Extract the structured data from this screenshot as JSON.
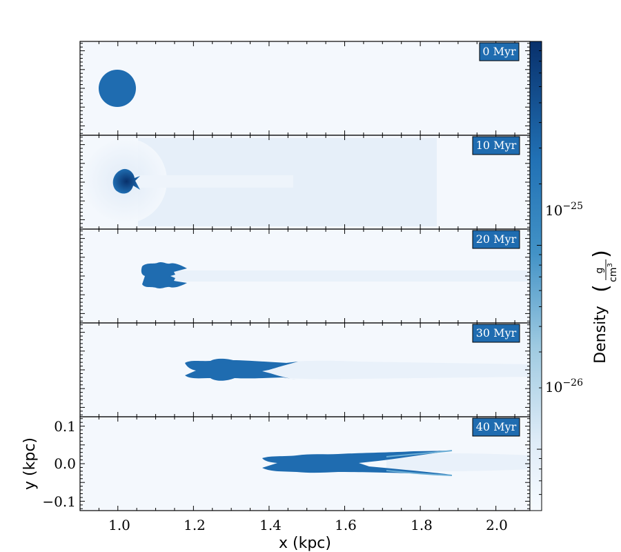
{
  "chart_data": {
    "type": "heatmap",
    "description": "",
    "xlabel": "x  (kpc)",
    "ylabel": "y  (kpc)",
    "xlim": [
      0.9,
      2.09
    ],
    "ylim": [
      -0.125,
      0.125
    ],
    "x_ticks": [
      1.0,
      1.2,
      1.4,
      1.6,
      1.8,
      2.0
    ],
    "x_tick_labels": [
      "1.0",
      "1.2",
      "1.4",
      "1.6",
      "1.8",
      "2.0"
    ],
    "y_ticks": [
      0.1,
      0.0,
      -0.1
    ],
    "y_tick_labels": [
      "0.1",
      "0.0",
      "−0.1"
    ],
    "colorbar": {
      "label": "Density",
      "unit_numerator": "g",
      "unit_denominator": "cm",
      "unit_denominator_exponent": "3",
      "scale": "log",
      "range": [
        5e-27,
        1e-24
      ],
      "ticks": [
        1e-25,
        1e-26
      ],
      "tick_labels": [
        {
          "base": "10",
          "exp": "−25"
        },
        {
          "base": "10",
          "exp": "−26"
        }
      ]
    },
    "panels": [
      {
        "time_label": "0 Myr",
        "cloud_x_kpc": 1.0,
        "cloud_shape": "sphere",
        "tail_end_x_kpc": null
      },
      {
        "time_label": "10 Myr",
        "cloud_x_kpc": 1.01,
        "cloud_shape": "compressed",
        "tail_end_x_kpc": 1.84
      },
      {
        "time_label": "20 Myr",
        "cloud_x_kpc": 1.12,
        "cloud_shape": "elongated",
        "tail_end_x_kpc": 2.09
      },
      {
        "time_label": "30 Myr",
        "cloud_x_kpc": 1.3,
        "cloud_shape": "stretched",
        "tail_end_x_kpc": 2.09
      },
      {
        "time_label": "40 Myr",
        "cloud_x_kpc": 1.55,
        "cloud_shape": "filamentary",
        "tail_end_x_kpc": 2.09
      }
    ],
    "colors": {
      "background": "#f4f8fd",
      "cloud": "#1f6cb0",
      "cloud_dark": "#0b3d7e",
      "tail": "#e6eff9",
      "badge": "#1f6cb0"
    }
  }
}
